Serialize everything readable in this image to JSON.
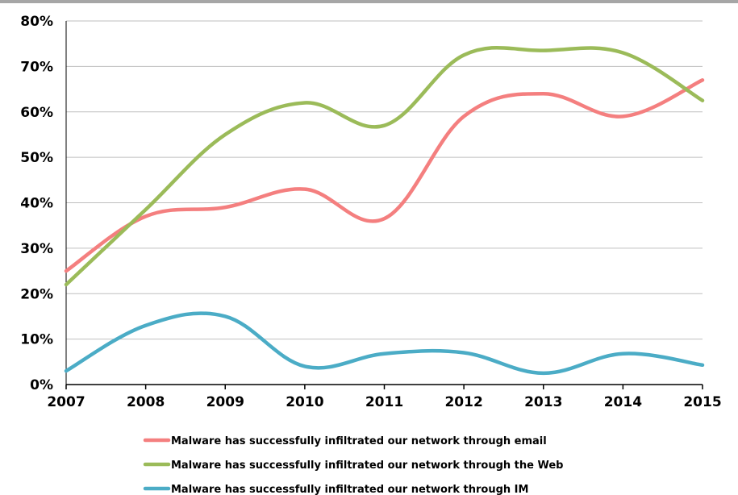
{
  "chart_data": {
    "type": "line",
    "title": "",
    "xlabel": "",
    "ylabel": "",
    "x": [
      "2007",
      "2008",
      "2009",
      "2010",
      "2011",
      "2012",
      "2013",
      "2014",
      "2015"
    ],
    "ylim": [
      0,
      80
    ],
    "yticks": [
      "0%",
      "10%",
      "20%",
      "30%",
      "40%",
      "50%",
      "60%",
      "70%",
      "80%"
    ],
    "grid": "horizontal",
    "legend_position": "bottom",
    "series": [
      {
        "name": "Malware has successfully infiltrated our network through email",
        "color": "#f47f7f",
        "values": [
          25,
          37,
          39,
          43,
          36.5,
          59,
          64,
          59,
          67
        ]
      },
      {
        "name": "Malware has successfully infiltrated our network through the Web",
        "color": "#9bbb59",
        "values": [
          22,
          38.5,
          55,
          62,
          57,
          72.5,
          73.5,
          73,
          62.5
        ]
      },
      {
        "name": "Malware has successfully infiltrated our network through IM",
        "color": "#4bacc6",
        "values": [
          3,
          13,
          15,
          4,
          6.8,
          7,
          2.5,
          6.8,
          4.3
        ]
      }
    ]
  }
}
